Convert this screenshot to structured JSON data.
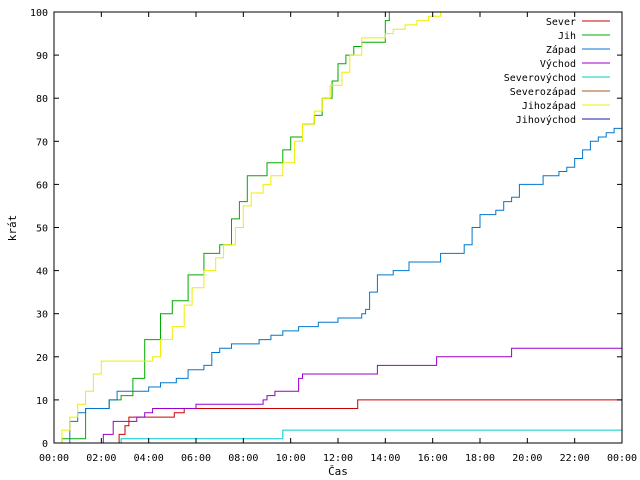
{
  "chart_data": {
    "type": "line",
    "title": "",
    "xlabel": "Čas",
    "ylabel": "krát",
    "xlim": [
      "00:00",
      "24:00"
    ],
    "ylim": [
      0,
      100
    ],
    "x_ticks": [
      "00:00",
      "02:00",
      "04:00",
      "06:00",
      "08:00",
      "10:00",
      "12:00",
      "14:00",
      "16:00",
      "18:00",
      "20:00",
      "22:00",
      "00:00"
    ],
    "y_ticks": [
      0,
      10,
      20,
      30,
      40,
      50,
      60,
      70,
      80,
      90,
      100
    ],
    "grid": false,
    "legend_position": "top-right",
    "series": [
      {
        "name": "Sever",
        "color": "#cc0000",
        "x": [
          "00:00",
          "02:05",
          "02:45",
          "03:00",
          "03:10",
          "04:40",
          "05:05",
          "05:30",
          "12:40",
          "12:50",
          "24:00"
        ],
        "y": [
          0,
          0,
          2,
          4,
          6,
          6,
          7,
          8,
          8,
          10,
          10
        ]
      },
      {
        "name": "Jih",
        "color": "#00aa00",
        "x": [
          "00:00",
          "00:20",
          "01:00",
          "01:20",
          "02:20",
          "02:50",
          "03:20",
          "03:50",
          "04:30",
          "05:00",
          "05:40",
          "06:20",
          "07:00",
          "07:30",
          "07:50",
          "08:10",
          "08:30",
          "09:00",
          "09:40",
          "10:00",
          "10:30",
          "11:00",
          "11:20",
          "11:45",
          "12:00",
          "12:20",
          "12:40",
          "13:00",
          "13:20",
          "13:40",
          "14:00",
          "14:10"
        ],
        "y": [
          0,
          1,
          1,
          8,
          10,
          11,
          15,
          24,
          30,
          33,
          39,
          44,
          46,
          52,
          56,
          62,
          62,
          65,
          68,
          71,
          74,
          76,
          80,
          84,
          88,
          90,
          92,
          93,
          93,
          93,
          98,
          100
        ]
      },
      {
        "name": "Západ",
        "color": "#0077cc",
        "x": [
          "00:00",
          "00:10",
          "00:40",
          "01:00",
          "01:20",
          "02:20",
          "02:40",
          "03:30",
          "04:00",
          "04:30",
          "05:10",
          "05:40",
          "06:20",
          "06:40",
          "07:00",
          "07:30",
          "08:10",
          "08:40",
          "09:10",
          "09:40",
          "10:20",
          "11:10",
          "12:00",
          "12:40",
          "13:00",
          "13:10",
          "13:20",
          "13:40",
          "14:20",
          "15:00",
          "16:20",
          "17:10",
          "17:20",
          "17:40",
          "18:00",
          "18:40",
          "19:00",
          "19:20",
          "19:40",
          "20:10",
          "20:40",
          "21:00",
          "21:20",
          "21:40",
          "22:00",
          "22:20",
          "22:40",
          "23:00",
          "23:20",
          "23:40",
          "24:00"
        ],
        "y": [
          0,
          0,
          5,
          7,
          8,
          10,
          12,
          12,
          13,
          14,
          15,
          17,
          18,
          21,
          22,
          23,
          23,
          24,
          25,
          26,
          27,
          28,
          29,
          29,
          30,
          31,
          35,
          39,
          40,
          42,
          44,
          44,
          46,
          50,
          53,
          54,
          56,
          57,
          60,
          60,
          62,
          62,
          63,
          64,
          66,
          68,
          70,
          71,
          72,
          73,
          74
        ]
      },
      {
        "name": "Východ",
        "color": "#9900cc",
        "x": [
          "00:00",
          "02:00",
          "02:05",
          "02:30",
          "03:30",
          "03:50",
          "04:10",
          "05:10",
          "06:00",
          "06:10",
          "08:00",
          "08:50",
          "09:00",
          "09:20",
          "10:00",
          "10:20",
          "10:30",
          "13:00",
          "13:40",
          "15:50",
          "16:10",
          "19:10",
          "19:20",
          "24:00"
        ],
        "y": [
          0,
          0,
          2,
          5,
          6,
          7,
          8,
          8,
          9,
          9,
          9,
          10,
          11,
          12,
          12,
          15,
          16,
          16,
          18,
          18,
          20,
          20,
          22,
          22
        ]
      },
      {
        "name": "Severovýchod",
        "color": "#00cccc",
        "x": [
          "00:00",
          "02:40",
          "02:50",
          "09:30",
          "09:40",
          "24:00"
        ],
        "y": [
          0,
          0,
          1,
          1,
          3,
          3
        ]
      },
      {
        "name": "Severozápad",
        "color": "#aa5522",
        "x": [
          "00:00",
          "24:00"
        ],
        "y": [
          0,
          0
        ]
      },
      {
        "name": "Jihozápad",
        "color": "#eeee00",
        "x": [
          "00:00",
          "00:20",
          "00:40",
          "01:00",
          "01:20",
          "01:40",
          "02:00",
          "02:40",
          "03:40",
          "04:10",
          "04:30",
          "05:00",
          "05:30",
          "05:50",
          "06:20",
          "06:50",
          "07:10",
          "07:40",
          "08:00",
          "08:20",
          "08:50",
          "09:10",
          "09:40",
          "10:10",
          "10:30",
          "11:00",
          "11:20",
          "11:40",
          "12:10",
          "12:30",
          "13:00",
          "13:40",
          "14:00",
          "14:20",
          "14:50",
          "15:20",
          "15:50",
          "16:20",
          "24:00"
        ],
        "y": [
          0,
          3,
          6,
          9,
          12,
          16,
          19,
          19,
          19,
          20,
          24,
          27,
          32,
          36,
          40,
          43,
          46,
          50,
          55,
          58,
          60,
          62,
          65,
          70,
          74,
          77,
          80,
          83,
          86,
          90,
          94,
          94,
          95,
          96,
          97,
          98,
          99,
          100,
          100
        ]
      },
      {
        "name": "Jihovýchod",
        "color": "#1a1aaa",
        "x": [
          "00:00",
          "24:00"
        ],
        "y": [
          0,
          0
        ]
      }
    ]
  }
}
